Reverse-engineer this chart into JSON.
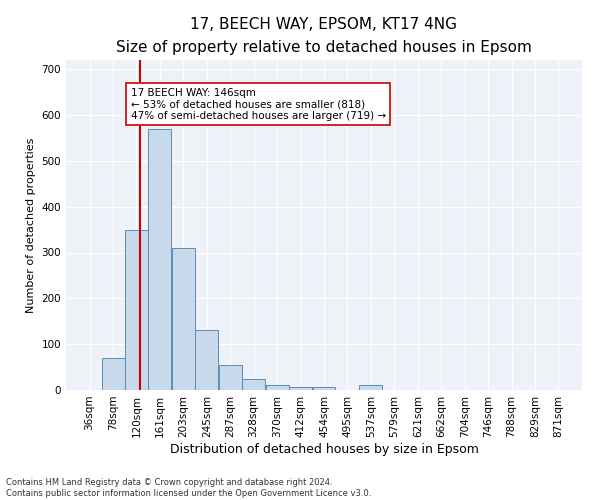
{
  "title1": "17, BEECH WAY, EPSOM, KT17 4NG",
  "title2": "Size of property relative to detached houses in Epsom",
  "xlabel": "Distribution of detached houses by size in Epsom",
  "ylabel": "Number of detached properties",
  "bin_labels": [
    "36sqm",
    "78sqm",
    "120sqm",
    "161sqm",
    "203sqm",
    "245sqm",
    "287sqm",
    "328sqm",
    "370sqm",
    "412sqm",
    "454sqm",
    "495sqm",
    "537sqm",
    "579sqm",
    "621sqm",
    "662sqm",
    "704sqm",
    "746sqm",
    "788sqm",
    "829sqm",
    "871sqm"
  ],
  "bar_values": [
    0,
    70,
    350,
    570,
    310,
    130,
    55,
    25,
    12,
    7,
    7,
    0,
    10,
    0,
    0,
    0,
    0,
    0,
    0,
    0,
    0
  ],
  "bin_edges": [
    36,
    78,
    120,
    161,
    203,
    245,
    287,
    328,
    370,
    412,
    454,
    495,
    537,
    579,
    621,
    662,
    704,
    746,
    788,
    829,
    871,
    913
  ],
  "bar_color": "#c9d9ec",
  "bar_edge_color": "#5b8db8",
  "vline_x": 146,
  "vline_color": "#cc0000",
  "annotation_line1": "17 BEECH WAY: 146sqm",
  "annotation_line2": "← 53% of detached houses are smaller (818)",
  "annotation_line3": "47% of semi-detached houses are larger (719) →",
  "annotation_box_color": "#ffffff",
  "annotation_box_edge": "#cc0000",
  "ylim": [
    0,
    720
  ],
  "yticks": [
    0,
    100,
    200,
    300,
    400,
    500,
    600,
    700
  ],
  "bg_color": "#eef2f8",
  "footer_line1": "Contains HM Land Registry data © Crown copyright and database right 2024.",
  "footer_line2": "Contains public sector information licensed under the Open Government Licence v3.0.",
  "title1_fontsize": 11,
  "title2_fontsize": 9.5,
  "xlabel_fontsize": 9,
  "ylabel_fontsize": 8,
  "tick_fontsize": 7.5,
  "annotation_fontsize": 7.5,
  "footer_fontsize": 6
}
